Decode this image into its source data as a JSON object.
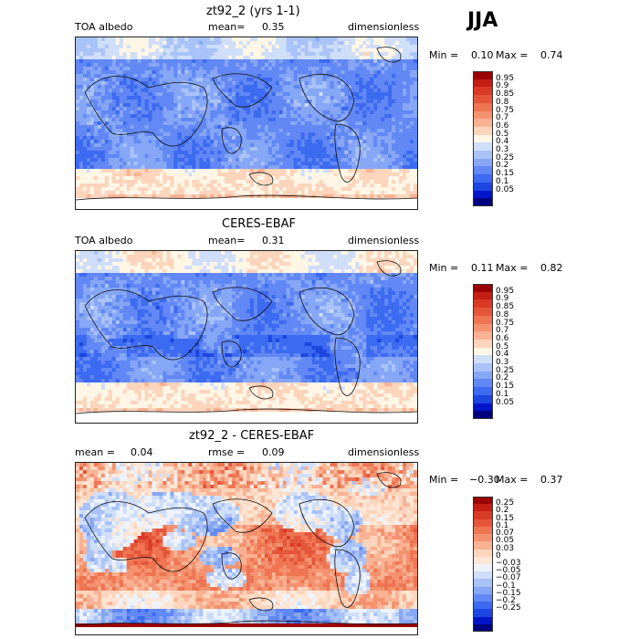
{
  "season": "JJA",
  "colors": {
    "seq": [
      "#00007f",
      "#0014c8",
      "#1d46e0",
      "#3c6af0",
      "#6188f4",
      "#86a6f6",
      "#a9c3f8",
      "#cfdef9",
      "#fff6e6",
      "#fcd5bc",
      "#f9b293",
      "#f49270",
      "#ee7452",
      "#e5553a",
      "#d93a25",
      "#c41e14",
      "#9b0000"
    ],
    "div": [
      "#00007f",
      "#0014c8",
      "#1d46e0",
      "#3c6af0",
      "#6188f4",
      "#86a6f6",
      "#a9c3f8",
      "#cfdef9",
      "#eef3fb",
      "#fde6d6",
      "#fcd5bc",
      "#f9b293",
      "#f49270",
      "#ee7452",
      "#e5553a",
      "#d93a25",
      "#c41e14",
      "#9b0000"
    ]
  },
  "chart_data": [
    {
      "type": "heatmap",
      "title": "zt92_2 (yrs 1-1)",
      "left_label": "TOA albedo",
      "mean_label": "mean=",
      "mean_value": "0.35",
      "units": "dimensionless",
      "min_label": "Min =",
      "min_value": "0.10",
      "max_label": "Max =",
      "max_value": "0.74",
      "levels": [
        "0.95",
        "0.9",
        "0.85",
        "0.8",
        "0.75",
        "0.7",
        "0.6",
        "0.5",
        "0.4",
        "0.3",
        "0.25",
        "0.2",
        "0.15",
        "0.1",
        "0.05"
      ],
      "palette": "seq",
      "seed": 11
    },
    {
      "type": "heatmap",
      "title": "CERES-EBAF",
      "left_label": "TOA albedo",
      "mean_label": "mean=",
      "mean_value": "0.31",
      "units": "dimensionless",
      "min_label": "Min =",
      "min_value": "0.11",
      "max_label": "Max =",
      "max_value": "0.82",
      "levels": [
        "0.95",
        "0.9",
        "0.85",
        "0.8",
        "0.75",
        "0.7",
        "0.6",
        "0.5",
        "0.4",
        "0.3",
        "0.25",
        "0.2",
        "0.15",
        "0.1",
        "0.05"
      ],
      "palette": "seq",
      "seed": 29
    },
    {
      "type": "heatmap",
      "title": "zt92_2 - CERES-EBAF",
      "mean_label": "mean =",
      "mean_value": "0.04",
      "rmse_label": "rmse =",
      "rmse_value": "0.09",
      "units": "dimensionless",
      "min_label": "Min =",
      "min_value": "−0.30",
      "max_label": "Max =",
      "max_value": "0.37",
      "levels": [
        "0.25",
        "0.2",
        "0.15",
        "0.1",
        "0.07",
        "0.05",
        "0.03",
        "0",
        "−0.03",
        "−0.05",
        "−0.07",
        "−0.1",
        "−0.15",
        "−0.2",
        "−0.25"
      ],
      "palette": "div",
      "seed": 47
    }
  ]
}
